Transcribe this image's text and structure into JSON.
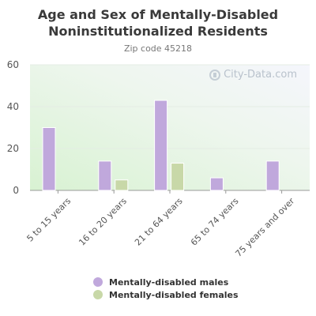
{
  "chart_data": {
    "type": "bar",
    "title": "Age and Sex of Mentally-Disabled Noninstitutionalized Residents",
    "subtitle": "Zip code 45218",
    "categories": [
      "5 to 15 years",
      "16 to 20 years",
      "21 to 64 years",
      "65 to 74 years",
      "75 years and over"
    ],
    "series": [
      {
        "name": "Mentally-disabled males",
        "color": "#c0a8dc",
        "values": [
          30,
          14,
          43,
          6,
          14
        ]
      },
      {
        "name": "Mentally-disabled females",
        "color": "#c8d8a8",
        "values": [
          0,
          5,
          13,
          0,
          0
        ]
      }
    ],
    "ylim": [
      0,
      60
    ],
    "yticks": [
      "0",
      "20",
      "40",
      "60"
    ],
    "grid": true,
    "legend_position": "bottom",
    "xlabel": "",
    "ylabel": ""
  },
  "watermark": {
    "text": "City-Data.com",
    "icon": "city-data-logo-icon"
  },
  "colors": {
    "background_top": "#f4f6fb",
    "background_bottom": "#dcf3d8",
    "axis": "#aaaaaa",
    "text": "#555555"
  }
}
